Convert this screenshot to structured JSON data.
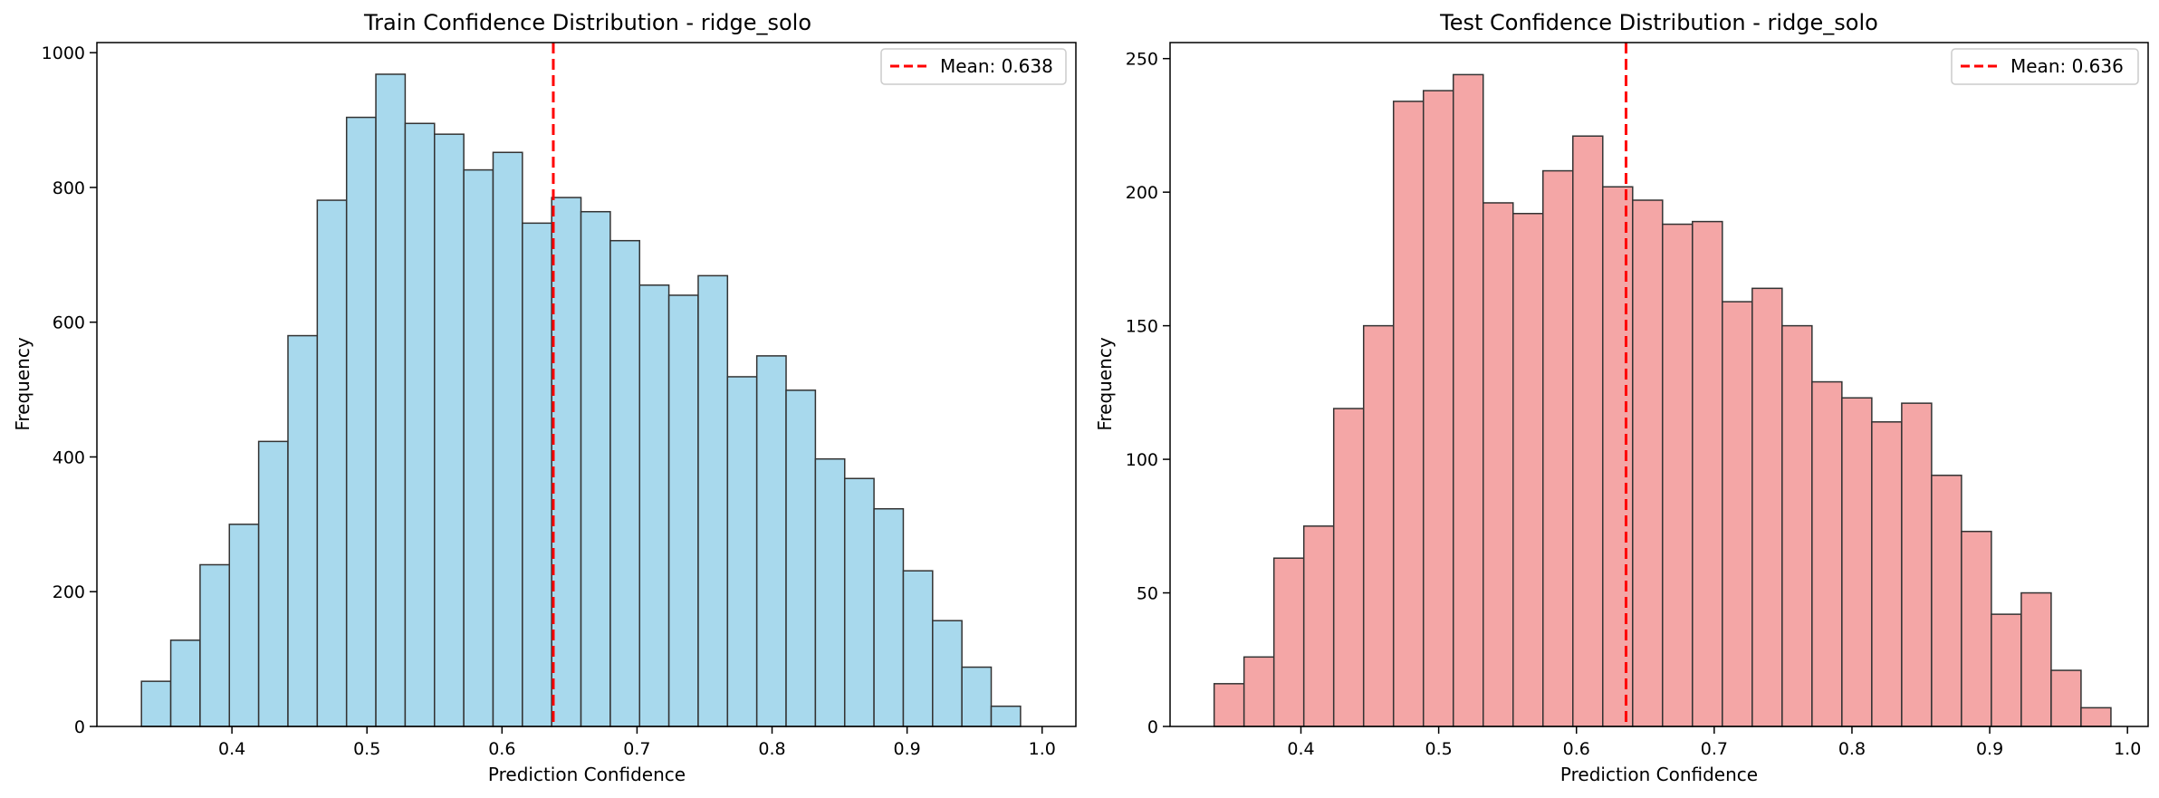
{
  "chart_data": [
    {
      "type": "bar",
      "title": "Train Confidence Distribution - ridge_solo",
      "xlabel": "Prediction Confidence",
      "ylabel": "Frequency",
      "xlim": [
        0.3,
        1.025
      ],
      "ylim": [
        0,
        1015
      ],
      "xticks": [
        "0.4",
        "0.5",
        "0.6",
        "0.7",
        "0.8",
        "0.9",
        "1.0"
      ],
      "yticks": [
        "0",
        "200",
        "400",
        "600",
        "800",
        "1000"
      ],
      "bin_start": 0.333,
      "bin_width": 0.0217,
      "values": [
        67,
        128,
        240,
        300,
        423,
        580,
        781,
        904,
        968,
        895,
        879,
        826,
        852,
        747,
        785,
        764,
        721,
        655,
        640,
        669,
        519,
        550,
        499,
        397,
        368,
        323,
        231,
        157,
        88,
        30
      ],
      "bar_color": "#a8d9ed",
      "edge_color": "#333333",
      "mean": 0.638,
      "mean_line_color": "#ff0000",
      "legend": {
        "label": "Mean: 0.638",
        "position": "top-right"
      }
    },
    {
      "type": "bar",
      "title": "Test Confidence Distribution - ridge_solo",
      "xlabel": "Prediction Confidence",
      "ylabel": "Frequency",
      "xlim": [
        0.305,
        1.015
      ],
      "ylim": [
        0,
        256
      ],
      "xticks": [
        "0.4",
        "0.5",
        "0.6",
        "0.7",
        "0.8",
        "0.9",
        "1.0"
      ],
      "yticks": [
        "0",
        "50",
        "100",
        "150",
        "200",
        "250"
      ],
      "bin_start": 0.337,
      "bin_width": 0.0217,
      "values": [
        16,
        26,
        63,
        75,
        119,
        150,
        234,
        238,
        244,
        196,
        192,
        208,
        221,
        202,
        197,
        188,
        189,
        159,
        164,
        150,
        129,
        123,
        114,
        121,
        94,
        73,
        42,
        50,
        21,
        7
      ],
      "bar_color": "#f4a6a6",
      "edge_color": "#333333",
      "mean": 0.636,
      "mean_line_color": "#ff0000",
      "legend": {
        "label": "Mean: 0.636",
        "position": "top-right"
      }
    }
  ]
}
